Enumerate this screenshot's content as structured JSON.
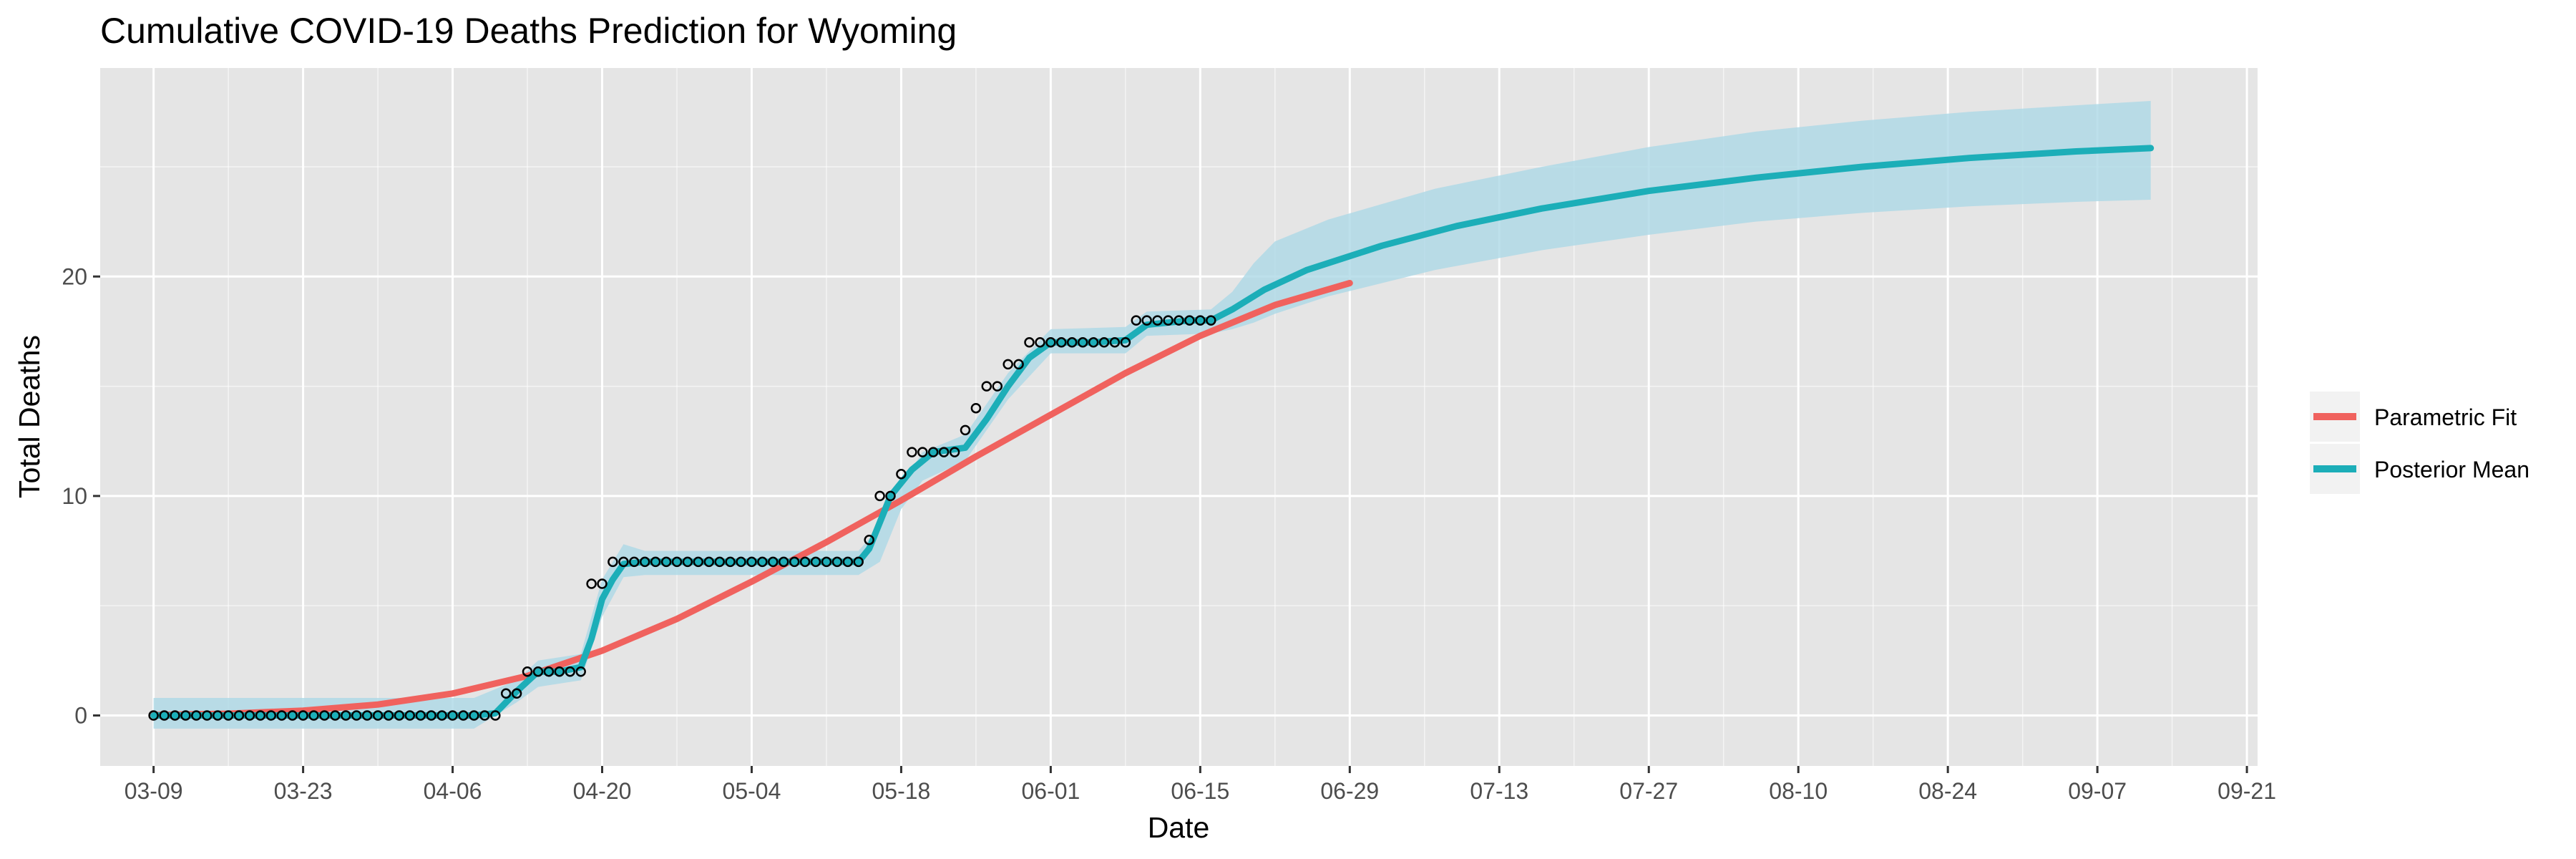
{
  "chart_data": {
    "type": "line",
    "title": "Cumulative COVID-19 Deaths Prediction for Wyoming",
    "xlabel": "Date",
    "ylabel": "Total Deaths",
    "x_tick_labels": [
      "03-09",
      "03-23",
      "04-06",
      "04-20",
      "05-04",
      "05-18",
      "06-01",
      "06-15",
      "06-29",
      "07-13",
      "07-27",
      "08-10",
      "08-24",
      "09-07",
      "09-21"
    ],
    "y_ticks": [
      0,
      10,
      20
    ],
    "xlim_days": [
      -5,
      197
    ],
    "ylim": [
      -2.3,
      29.5
    ],
    "grid": true,
    "legend_position": "right",
    "colors": {
      "panel_background": "#e5e5e5",
      "grid": "#ffffff",
      "parametric_fit": "#f0625e",
      "posterior_mean": "#1caeb8",
      "credible_band": "#add8e6",
      "observed_point_stroke": "#000000"
    },
    "series": [
      {
        "name": "Parametric Fit",
        "points": [
          [
            0,
            0.02
          ],
          [
            7,
            0.08
          ],
          [
            14,
            0.22
          ],
          [
            21,
            0.5
          ],
          [
            28,
            1.0
          ],
          [
            35,
            1.8
          ],
          [
            42,
            2.95
          ],
          [
            49,
            4.4
          ],
          [
            56,
            6.1
          ],
          [
            63,
            7.9
          ],
          [
            70,
            9.8
          ],
          [
            77,
            11.8
          ],
          [
            84,
            13.7
          ],
          [
            91,
            15.6
          ],
          [
            98,
            17.3
          ],
          [
            105,
            18.7
          ],
          [
            112,
            19.7
          ]
        ]
      },
      {
        "name": "Posterior Mean",
        "points": [
          [
            0,
            0
          ],
          [
            10,
            0
          ],
          [
            20,
            0
          ],
          [
            30,
            0
          ],
          [
            32,
            0.1
          ],
          [
            34,
            1.1
          ],
          [
            36,
            2.0
          ],
          [
            38,
            2.0
          ],
          [
            40,
            2.2
          ],
          [
            41,
            3.5
          ],
          [
            42,
            5.3
          ],
          [
            43,
            6.2
          ],
          [
            44,
            6.9
          ],
          [
            46,
            7.0
          ],
          [
            50,
            7.0
          ],
          [
            56,
            7.0
          ],
          [
            62,
            7.0
          ],
          [
            66,
            7.0
          ],
          [
            67,
            7.6
          ],
          [
            69,
            10.0
          ],
          [
            71,
            11.2
          ],
          [
            73,
            12.0
          ],
          [
            76,
            12.2
          ],
          [
            78,
            13.5
          ],
          [
            80,
            15.0
          ],
          [
            82,
            16.3
          ],
          [
            84,
            17.0
          ],
          [
            88,
            17.0
          ],
          [
            91,
            17.1
          ],
          [
            93,
            17.8
          ],
          [
            97,
            18.0
          ],
          [
            99,
            18.0
          ],
          [
            101,
            18.5
          ],
          [
            104,
            19.4
          ],
          [
            108,
            20.3
          ],
          [
            115,
            21.4
          ],
          [
            122,
            22.3
          ],
          [
            130,
            23.1
          ],
          [
            140,
            23.9
          ],
          [
            150,
            24.5
          ],
          [
            160,
            25.0
          ],
          [
            170,
            25.4
          ],
          [
            180,
            25.7
          ],
          [
            187,
            25.85
          ]
        ],
        "band_upper": [
          [
            0,
            0.8
          ],
          [
            30,
            0.8
          ],
          [
            34,
            1.6
          ],
          [
            36,
            2.5
          ],
          [
            40,
            2.8
          ],
          [
            42,
            6.2
          ],
          [
            44,
            7.8
          ],
          [
            46,
            7.5
          ],
          [
            66,
            7.5
          ],
          [
            68,
            8.6
          ],
          [
            70,
            10.5
          ],
          [
            72,
            12.0
          ],
          [
            76,
            12.8
          ],
          [
            80,
            15.6
          ],
          [
            84,
            17.6
          ],
          [
            91,
            17.7
          ],
          [
            93,
            18.4
          ],
          [
            99,
            18.5
          ],
          [
            101,
            19.3
          ],
          [
            103,
            20.6
          ],
          [
            105,
            21.6
          ],
          [
            110,
            22.6
          ],
          [
            120,
            24.0
          ],
          [
            130,
            25.0
          ],
          [
            140,
            25.9
          ],
          [
            150,
            26.6
          ],
          [
            160,
            27.1
          ],
          [
            170,
            27.5
          ],
          [
            180,
            27.8
          ],
          [
            187,
            28.0
          ]
        ],
        "band_lower": [
          [
            0,
            -0.6
          ],
          [
            30,
            -0.6
          ],
          [
            34,
            0.6
          ],
          [
            36,
            1.3
          ],
          [
            40,
            1.6
          ],
          [
            42,
            4.5
          ],
          [
            44,
            6.3
          ],
          [
            46,
            6.4
          ],
          [
            66,
            6.4
          ],
          [
            68,
            7.0
          ],
          [
            70,
            9.4
          ],
          [
            72,
            10.7
          ],
          [
            76,
            11.6
          ],
          [
            80,
            14.4
          ],
          [
            84,
            16.5
          ],
          [
            91,
            16.5
          ],
          [
            93,
            17.3
          ],
          [
            99,
            17.4
          ],
          [
            101,
            17.6
          ],
          [
            103,
            17.9
          ],
          [
            105,
            18.3
          ],
          [
            110,
            19.1
          ],
          [
            120,
            20.3
          ],
          [
            130,
            21.2
          ],
          [
            140,
            21.9
          ],
          [
            150,
            22.5
          ],
          [
            160,
            22.9
          ],
          [
            170,
            23.2
          ],
          [
            180,
            23.4
          ],
          [
            187,
            23.5
          ]
        ]
      }
    ],
    "observed": [
      0,
      0,
      0,
      0,
      0,
      0,
      0,
      0,
      0,
      0,
      0,
      0,
      0,
      0,
      0,
      0,
      0,
      0,
      0,
      0,
      0,
      0,
      0,
      0,
      0,
      0,
      0,
      0,
      0,
      0,
      0,
      0,
      0,
      1,
      1,
      2,
      2,
      2,
      2,
      2,
      2,
      6,
      6,
      7,
      7,
      7,
      7,
      7,
      7,
      7,
      7,
      7,
      7,
      7,
      7,
      7,
      7,
      7,
      7,
      7,
      7,
      7,
      7,
      7,
      7,
      7,
      7,
      8,
      10,
      10,
      11,
      12,
      12,
      12,
      12,
      12,
      13,
      14,
      15,
      15,
      16,
      16,
      17,
      17,
      17,
      17,
      17,
      17,
      17,
      17,
      17,
      17,
      18,
      18,
      18,
      18,
      18,
      18,
      18,
      18
    ],
    "legend": [
      {
        "label": "Parametric Fit",
        "color": "#f0625e"
      },
      {
        "label": "Posterior Mean",
        "color": "#1caeb8"
      }
    ]
  }
}
